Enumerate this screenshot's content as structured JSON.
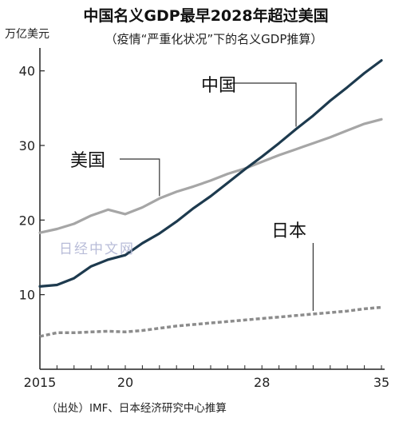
{
  "chart_data": {
    "type": "line",
    "title": "中国名义GDP最早2028年超过美国",
    "subtitle": "（疫情“严重化状况”下的名义GDP推算）",
    "ylabel": "万亿美元",
    "source": "（出处）IMF、日本经济研究中心推算",
    "watermark": "日经中文网",
    "x": [
      2015,
      2016,
      2017,
      2018,
      2019,
      2020,
      2021,
      2022,
      2023,
      2024,
      2025,
      2026,
      2027,
      2028,
      2029,
      2030,
      2031,
      2032,
      2033,
      2034,
      2035
    ],
    "x_tick_labels": [
      {
        "value": 2015,
        "label": "2015"
      },
      {
        "value": 2020,
        "label": "20"
      },
      {
        "value": 2028,
        "label": "28"
      },
      {
        "value": 2035,
        "label": "35"
      }
    ],
    "y_ticks": [
      10,
      20,
      30,
      40
    ],
    "xlim": [
      2015,
      2035
    ],
    "ylim": [
      0,
      42
    ],
    "series": [
      {
        "name": "中国",
        "color": "#1d3a4e",
        "style": "solid",
        "values": [
          11.1,
          11.3,
          12.2,
          13.8,
          14.7,
          15.3,
          16.9,
          18.2,
          19.8,
          21.6,
          23.2,
          25.0,
          26.8,
          28.5,
          30.3,
          32.2,
          34.0,
          36.0,
          37.8,
          39.7,
          41.4
        ]
      },
      {
        "name": "美国",
        "color": "#a6a6a6",
        "style": "solid",
        "values": [
          18.3,
          18.8,
          19.5,
          20.6,
          21.4,
          20.8,
          21.7,
          22.9,
          23.8,
          24.5,
          25.3,
          26.2,
          26.9,
          27.8,
          28.7,
          29.5,
          30.3,
          31.1,
          32.0,
          32.9,
          33.5
        ]
      },
      {
        "name": "日本",
        "color": "#8c8c8c",
        "style": "dashed",
        "values": [
          4.4,
          4.9,
          4.9,
          5.0,
          5.1,
          5.0,
          5.2,
          5.5,
          5.8,
          6.0,
          6.2,
          6.4,
          6.6,
          6.8,
          7.0,
          7.2,
          7.4,
          7.6,
          7.8,
          8.1,
          8.3
        ]
      }
    ],
    "grid": false,
    "legend": "direct-labels"
  }
}
